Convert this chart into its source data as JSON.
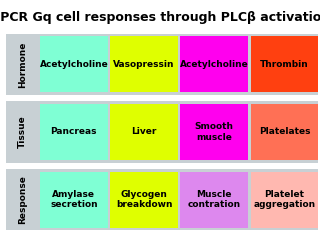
{
  "title": "GPCR Gq cell responses through PLCβ activation",
  "background_color": "#ffffff",
  "outer_bg": "#c8d0d4",
  "row_labels": [
    "Hormone",
    "Tissue",
    "Response"
  ],
  "row_keys": [
    "hormone",
    "tissue",
    "response"
  ],
  "columns": [
    {
      "hormone": {
        "text": "Acetylcholine",
        "color": "#7fffd4"
      },
      "tissue": {
        "text": "Pancreas",
        "color": "#7fffd4"
      },
      "response": {
        "text": "Amylase\nsecretion",
        "color": "#7fffd4"
      }
    },
    {
      "hormone": {
        "text": "Vasopressin",
        "color": "#dfff00"
      },
      "tissue": {
        "text": "Liver",
        "color": "#dfff00"
      },
      "response": {
        "text": "Glycogen\nbreakdown",
        "color": "#dfff00"
      }
    },
    {
      "hormone": {
        "text": "Acetylcholine",
        "color": "#ff00ee"
      },
      "tissue": {
        "text": "Smooth\nmuscle",
        "color": "#ff00ee"
      },
      "response": {
        "text": "Muscle\ncontration",
        "color": "#dd88ee"
      }
    },
    {
      "hormone": {
        "text": "Thrombin",
        "color": "#ff4010"
      },
      "tissue": {
        "text": "Platelates",
        "color": "#ff7055"
      },
      "response": {
        "text": "Platelet\naggregation",
        "color": "#ffb8b0"
      }
    }
  ],
  "title_fontsize": 9,
  "cell_fontsize": 6.5,
  "row_label_fontsize": 6.5
}
